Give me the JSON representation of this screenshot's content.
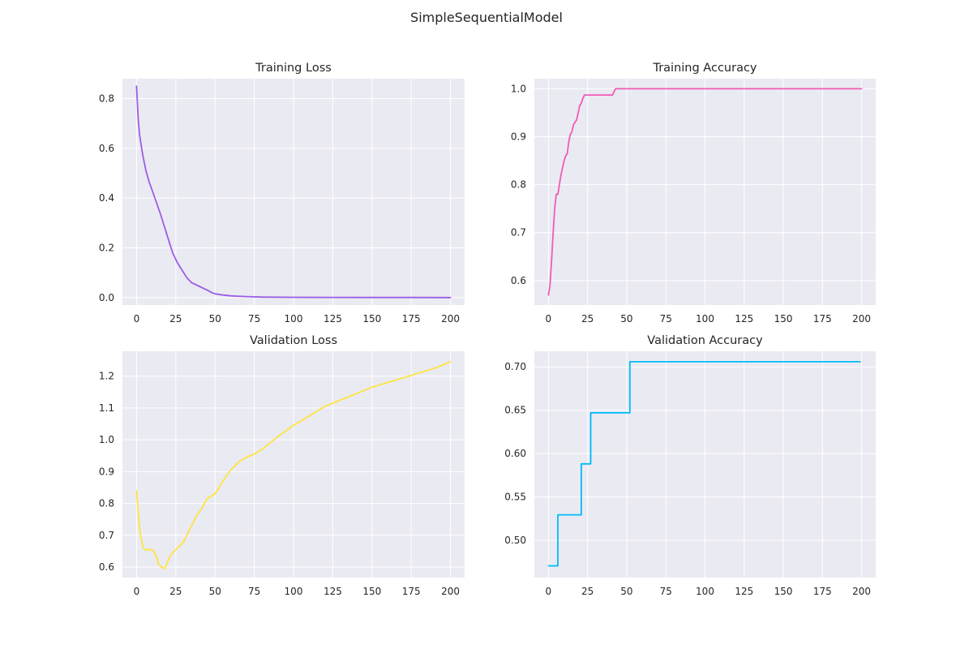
{
  "figure": {
    "suptitle": "SimpleSequentialModel"
  },
  "chart_data": [
    {
      "type": "line",
      "title": "Training Loss",
      "xlabel": "",
      "ylabel": "",
      "xlim": [
        -9,
        209
      ],
      "ylim": [
        -0.03,
        0.88
      ],
      "xticks": [
        0,
        25,
        50,
        75,
        100,
        125,
        150,
        175,
        200
      ],
      "yticks": [
        0.0,
        0.2,
        0.4,
        0.6,
        0.8
      ],
      "ytick_decimals": 1,
      "grid": true,
      "series": [
        {
          "color": "#9b5de5",
          "step": false,
          "x": [
            0,
            1,
            2,
            4,
            6,
            8,
            10,
            15,
            18,
            20,
            23,
            26,
            29,
            32,
            35,
            40,
            45,
            48,
            50,
            55,
            60,
            70,
            80,
            100,
            125,
            150,
            175,
            200
          ],
          "y": [
            0.85,
            0.72,
            0.65,
            0.57,
            0.51,
            0.465,
            0.43,
            0.34,
            0.28,
            0.24,
            0.18,
            0.14,
            0.11,
            0.08,
            0.06,
            0.045,
            0.03,
            0.02,
            0.015,
            0.01,
            0.007,
            0.004,
            0.002,
            0.001,
            0.0005,
            0.0003,
            0.0002,
            0.0001
          ]
        }
      ]
    },
    {
      "type": "line",
      "title": "Training Accuracy",
      "xlabel": "",
      "ylabel": "",
      "xlim": [
        -9,
        209
      ],
      "ylim": [
        0.549,
        1.021
      ],
      "xticks": [
        0,
        25,
        50,
        75,
        100,
        125,
        150,
        175,
        200
      ],
      "yticks": [
        0.6,
        0.7,
        0.8,
        0.9,
        1.0
      ],
      "ytick_decimals": 1,
      "grid": true,
      "series": [
        {
          "color": "#f15bb5",
          "step": false,
          "x": [
            0,
            1,
            2,
            3,
            4,
            5,
            6,
            7,
            8,
            9,
            10,
            11,
            12,
            13,
            14,
            15,
            16,
            17,
            18,
            19,
            20,
            21,
            22,
            23,
            24,
            30,
            35,
            40,
            41,
            42,
            43,
            44,
            50,
            100,
            150,
            200
          ],
          "y": [
            0.57,
            0.59,
            0.64,
            0.7,
            0.75,
            0.78,
            0.78,
            0.8,
            0.82,
            0.835,
            0.85,
            0.86,
            0.865,
            0.89,
            0.905,
            0.91,
            0.925,
            0.93,
            0.935,
            0.95,
            0.965,
            0.97,
            0.98,
            0.987,
            0.987,
            0.987,
            0.987,
            0.987,
            0.987,
            0.995,
            1.0,
            1.0,
            1.0,
            1.0,
            1.0,
            1.0
          ]
        }
      ]
    },
    {
      "type": "line",
      "title": "Validation Loss",
      "xlabel": "",
      "ylabel": "",
      "xlim": [
        -9,
        209
      ],
      "ylim": [
        0.567,
        1.278
      ],
      "xticks": [
        0,
        25,
        50,
        75,
        100,
        125,
        150,
        175,
        200
      ],
      "yticks": [
        0.6,
        0.7,
        0.8,
        0.9,
        1.0,
        1.1,
        1.2
      ],
      "ytick_decimals": 1,
      "grid": true,
      "series": [
        {
          "color": "#fee440",
          "step": false,
          "x": [
            0,
            1,
            2,
            3,
            4,
            5,
            6,
            7,
            10,
            12,
            14,
            16,
            18,
            20,
            22,
            24,
            26,
            28,
            30,
            32,
            35,
            38,
            41,
            45,
            50,
            55,
            60,
            65,
            70,
            75,
            80,
            90,
            100,
            110,
            120,
            130,
            140,
            150,
            160,
            170,
            180,
            190,
            200
          ],
          "y": [
            0.84,
            0.77,
            0.72,
            0.69,
            0.665,
            0.655,
            0.655,
            0.655,
            0.655,
            0.64,
            0.61,
            0.6,
            0.595,
            0.62,
            0.64,
            0.65,
            0.66,
            0.67,
            0.68,
            0.7,
            0.73,
            0.76,
            0.78,
            0.815,
            0.83,
            0.87,
            0.905,
            0.93,
            0.945,
            0.955,
            0.97,
            1.01,
            1.045,
            1.075,
            1.105,
            1.125,
            1.145,
            1.165,
            1.18,
            1.195,
            1.21,
            1.225,
            1.245
          ]
        }
      ]
    },
    {
      "type": "line",
      "title": "Validation Accuracy",
      "xlabel": "",
      "ylabel": "",
      "xlim": [
        -9,
        209
      ],
      "ylim": [
        0.457,
        0.718
      ],
      "xticks": [
        0,
        25,
        50,
        75,
        100,
        125,
        150,
        175,
        200
      ],
      "yticks": [
        0.5,
        0.55,
        0.6,
        0.65,
        0.7
      ],
      "ytick_decimals": 2,
      "grid": true,
      "series": [
        {
          "color": "#00bbf9",
          "step": true,
          "x": [
            0,
            6,
            21,
            27,
            52,
            199
          ],
          "y": [
            0.4706,
            0.5294,
            0.5882,
            0.6471,
            0.7059,
            0.7059
          ]
        }
      ]
    }
  ]
}
